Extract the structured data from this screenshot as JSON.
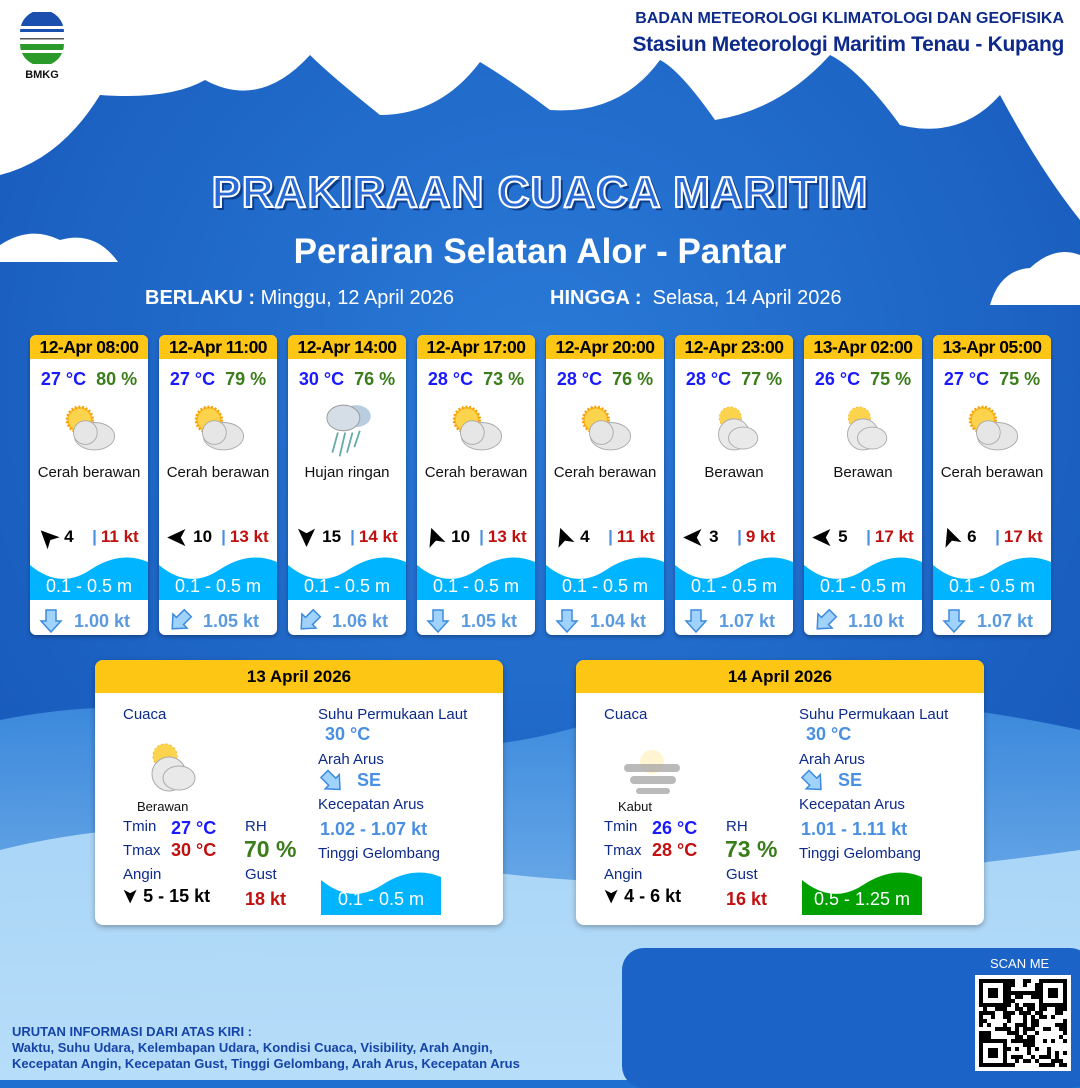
{
  "header": {
    "org": "BADAN METEOROLOGI KLIMATOLOGI DAN GEOFISIKA",
    "station": "Stasiun Meteorologi Maritim Tenau - Kupang",
    "logo_text": "BMKG"
  },
  "title": "PRAKIRAAN CUACA MARITIM",
  "area": "Perairan Selatan Alor - Pantar",
  "validity": {
    "from_label": "BERLAKU :",
    "from": "Minggu, 12 April 2026",
    "to_label": "HINGGA :",
    "to": "Selasa, 14 April 2026"
  },
  "colors": {
    "header_yellow": "#fdc514",
    "temp": "#1a1aff",
    "rh": "#3a7d1a",
    "gust": "#c01010",
    "wave_low": "#00b4ff",
    "wave_mid": "#00a000",
    "background": "#1f6fd0"
  },
  "forecasts": [
    {
      "time": "12-Apr 08:00",
      "temp": "27 °C",
      "rh": "80 %",
      "icon": "partly-cloudy",
      "condition": "Cerah berawan",
      "wind_dir_deg": 225,
      "wind": "4",
      "gust": "11 kt",
      "wave": "0.1 - 0.5 m",
      "current_dir": "down",
      "current": "1.00 kt"
    },
    {
      "time": "12-Apr 11:00",
      "temp": "27 °C",
      "rh": "79 %",
      "icon": "partly-cloudy",
      "condition": "Cerah berawan",
      "wind_dir_deg": 180,
      "wind": "10",
      "gust": "13 kt",
      "wave": "0.1 - 0.5 m",
      "current_dir": "down-left",
      "current": "1.05 kt"
    },
    {
      "time": "12-Apr 14:00",
      "temp": "30 °C",
      "rh": "76 %",
      "icon": "light-rain",
      "condition": "Hujan ringan",
      "wind_dir_deg": 90,
      "wind": "15",
      "gust": "14 kt",
      "wave": "0.1 - 0.5 m",
      "current_dir": "down-left",
      "current": "1.06 kt"
    },
    {
      "time": "12-Apr 17:00",
      "temp": "28 °C",
      "rh": "73 %",
      "icon": "partly-cloudy",
      "condition": "Cerah berawan",
      "wind_dir_deg": 250,
      "wind": "10",
      "gust": "13 kt",
      "wave": "0.1 - 0.5 m",
      "current_dir": "down",
      "current": "1.05 kt"
    },
    {
      "time": "12-Apr 20:00",
      "temp": "28 °C",
      "rh": "76 %",
      "icon": "partly-cloudy",
      "condition": "Cerah berawan",
      "wind_dir_deg": 250,
      "wind": "4",
      "gust": "11 kt",
      "wave": "0.1 - 0.5 m",
      "current_dir": "down",
      "current": "1.04 kt"
    },
    {
      "time": "12-Apr 23:00",
      "temp": "28 °C",
      "rh": "77 %",
      "icon": "cloudy",
      "condition": "Berawan",
      "wind_dir_deg": 180,
      "wind": "3",
      "gust": "9 kt",
      "wave": "0.1 - 0.5 m",
      "current_dir": "down",
      "current": "1.07 kt"
    },
    {
      "time": "13-Apr 02:00",
      "temp": "26 °C",
      "rh": "75 %",
      "icon": "cloudy",
      "condition": "Berawan",
      "wind_dir_deg": 180,
      "wind": "5",
      "gust": "17 kt",
      "wave": "0.1 - 0.5 m",
      "current_dir": "down-left",
      "current": "1.10 kt"
    },
    {
      "time": "13-Apr 05:00",
      "temp": "27 °C",
      "rh": "75 %",
      "icon": "partly-cloudy",
      "condition": "Cerah berawan",
      "wind_dir_deg": 250,
      "wind": "6",
      "gust": "17 kt",
      "wave": "0.1 - 0.5 m",
      "current_dir": "down",
      "current": "1.07 kt"
    }
  ],
  "daily": [
    {
      "date": "13 April 2026",
      "weather_label": "Cuaca",
      "icon": "cloudy",
      "condition": "Berawan",
      "tmin_label": "Tmin",
      "tmin": "27 °C",
      "tmax_label": "Tmax",
      "tmax": "30 °C",
      "rh_label": "RH",
      "rh": "70 %",
      "wind_label": "Angin",
      "wind": "5  - 15 kt",
      "gust_label": "Gust",
      "gust": "18 kt",
      "sst_label": "Suhu Permukaan Laut",
      "sst": "30 °C",
      "current_dir_label": "Arah Arus",
      "current_dir": "SE",
      "current_speed_label": "Kecepatan Arus",
      "current_speed": "1.02  - 1.07 kt",
      "wave_label": "Tinggi Gelombang",
      "wave": "0.1 - 0.5 m",
      "wave_color": "#00b4ff"
    },
    {
      "date": "14 April 2026",
      "weather_label": "Cuaca",
      "icon": "fog",
      "condition": "Kabut",
      "tmin_label": "Tmin",
      "tmin": "26 °C",
      "tmax_label": "Tmax",
      "tmax": "28 °C",
      "rh_label": "RH",
      "rh": "73 %",
      "wind_label": "Angin",
      "wind": "4  - 6 kt",
      "gust_label": "Gust",
      "gust": "16 kt",
      "sst_label": "Suhu Permukaan Laut",
      "sst": "30 °C",
      "current_dir_label": "Arah Arus",
      "current_dir": "SE",
      "current_speed_label": "Kecepatan Arus",
      "current_speed": "1.01  - 1.11 kt",
      "wave_label": "Tinggi Gelombang",
      "wave": "0.5 - 1.25 m",
      "wave_color": "#00a000"
    }
  ],
  "footer": {
    "line1": "URUTAN INFORMASI DARI ATAS KIRI :",
    "line2": "Waktu, Suhu Udara, Kelembapan Udara, Kondisi Cuaca, Visibility, Arah Angin,",
    "line3": "Kecepatan Angin, Kecepatan Gust, Tinggi Gelombang, Arah Arus, Kecepatan Arus"
  },
  "qr": {
    "label": "SCAN ME"
  }
}
